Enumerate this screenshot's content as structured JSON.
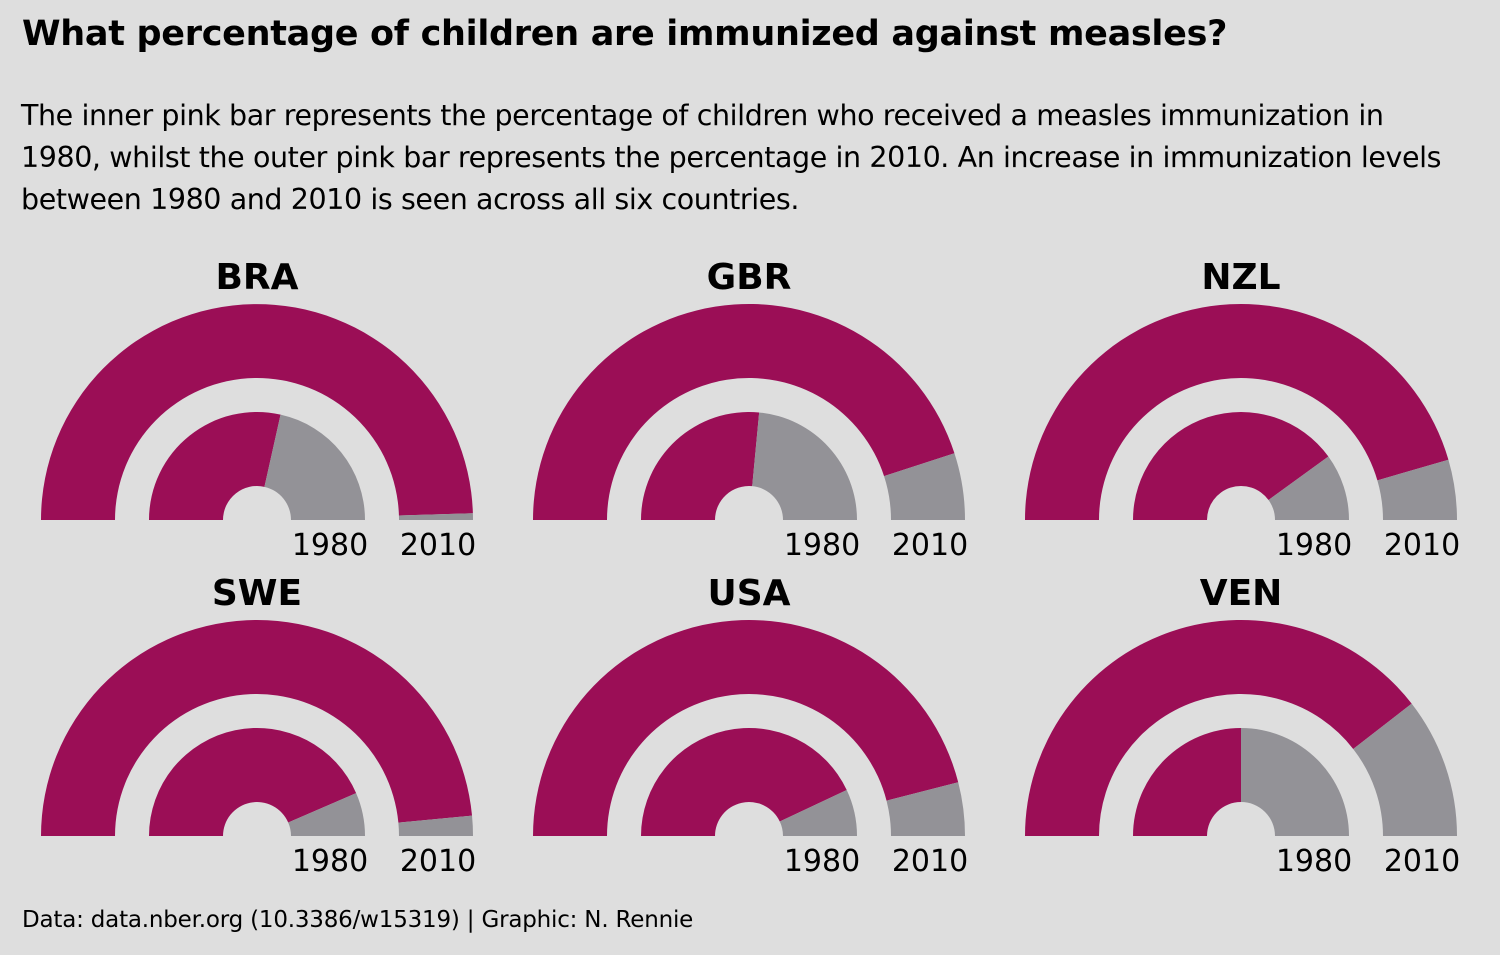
{
  "title": "What percentage of children are immunized against measles?",
  "subtitle": "The inner pink bar represents the percentage of children who received a measles immunization in 1980, whilst the outer pink bar represents the percentage in 2010. An increase in immunization levels between 1980 and 2010 is seen across all six countries.",
  "caption": "Data: data.nber.org (10.3386/w15319) | Graphic: N. Rennie",
  "colors": {
    "background": "#DEDEDE",
    "immunized": "#9B0E56",
    "remainder": "#939297",
    "text": "#000000"
  },
  "chart_data": {
    "type": "radial-bar",
    "unit": "%",
    "ring_labels": [
      "1980",
      "2010"
    ],
    "ylim": [
      0,
      100
    ],
    "panels": [
      {
        "country": "BRA",
        "values": [
          57,
          99
        ]
      },
      {
        "country": "GBR",
        "values": [
          53,
          90
        ]
      },
      {
        "country": "NZL",
        "values": [
          80,
          91
        ]
      },
      {
        "country": "SWE",
        "values": [
          87,
          97
        ]
      },
      {
        "country": "USA",
        "values": [
          86,
          92
        ]
      },
      {
        "country": "VEN",
        "values": [
          50,
          79
        ]
      }
    ]
  }
}
